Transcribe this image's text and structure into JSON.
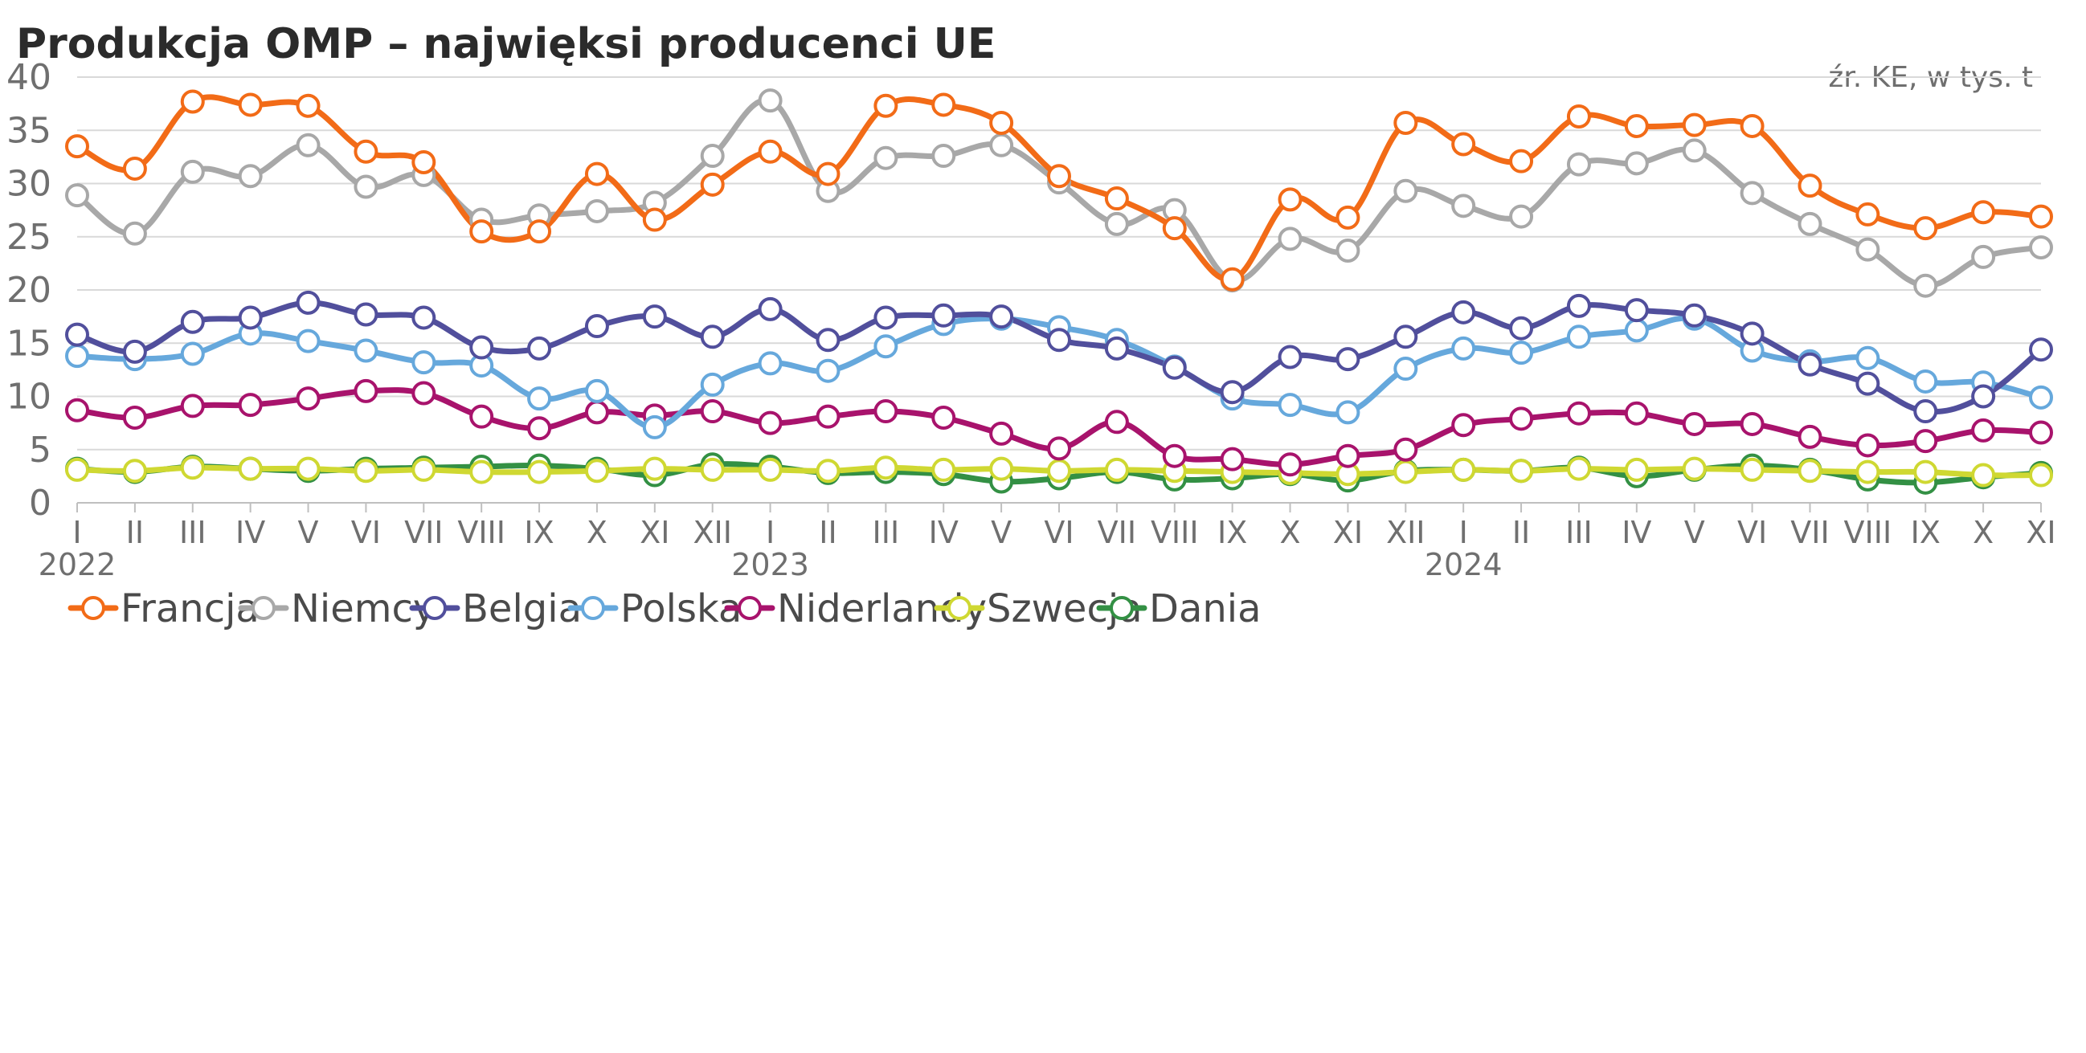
{
  "chart_data": {
    "type": "line",
    "title": "Produkcja OMP – najwięksi producenci UE",
    "source_note": "źr. KE, w tys. t",
    "ylim": [
      0,
      40
    ],
    "yticks": [
      "0",
      "5",
      "10",
      "15",
      "20",
      "25",
      "30",
      "35",
      "40"
    ],
    "grid": true,
    "legend_position": "bottom",
    "categories": [
      "I",
      "II",
      "III",
      "IV",
      "V",
      "VI",
      "VII",
      "VIII",
      "IX",
      "X",
      "XI",
      "XII",
      "I",
      "II",
      "III",
      "IV",
      "V",
      "VI",
      "VII",
      "VIII",
      "IX",
      "X",
      "XI",
      "XII",
      "I",
      "II",
      "III",
      "IV",
      "V",
      "VI",
      "VII",
      "VIII",
      "IX",
      "X",
      "XI"
    ],
    "years": [
      {
        "label": "2022",
        "index": 0
      },
      {
        "label": "2023",
        "index": 12
      },
      {
        "label": "2024",
        "index": 24
      }
    ],
    "series": [
      {
        "name": "Francja",
        "color": "#f26b17",
        "values": [
          33.5,
          31.4,
          37.7,
          37.4,
          37.3,
          33.0,
          32.0,
          25.5,
          25.5,
          30.9,
          26.6,
          29.9,
          33.0,
          30.9,
          37.3,
          37.4,
          35.7,
          30.7,
          28.6,
          25.8,
          21.0,
          28.5,
          26.8,
          35.7,
          33.7,
          32.1,
          36.3,
          35.4,
          35.5,
          35.4,
          29.8,
          27.1,
          25.8,
          27.3,
          26.9
        ]
      },
      {
        "name": "Niemcy",
        "color": "#a8a8a8",
        "values": [
          28.9,
          25.3,
          31.1,
          30.7,
          33.6,
          29.7,
          30.8,
          26.6,
          27.0,
          27.4,
          28.2,
          32.6,
          37.8,
          29.3,
          32.4,
          32.6,
          33.6,
          30.1,
          26.2,
          27.5,
          20.9,
          24.8,
          23.7,
          29.3,
          27.9,
          26.9,
          31.8,
          31.9,
          33.1,
          29.1,
          26.2,
          23.8,
          20.4,
          23.1,
          24.0
        ]
      },
      {
        "name": "Belgia",
        "color": "#514f9c",
        "values": [
          15.8,
          14.2,
          17.0,
          17.4,
          18.8,
          17.7,
          17.4,
          14.6,
          14.5,
          16.6,
          17.5,
          15.6,
          18.2,
          15.3,
          17.4,
          17.6,
          17.5,
          15.3,
          14.5,
          12.7,
          10.4,
          13.7,
          13.5,
          15.6,
          17.9,
          16.4,
          18.5,
          18.1,
          17.6,
          15.9,
          13.0,
          11.2,
          8.6,
          10.0,
          14.4
        ]
      },
      {
        "name": "Polska",
        "color": "#66a8dc",
        "values": [
          13.8,
          13.5,
          14.0,
          15.9,
          15.2,
          14.3,
          13.2,
          12.9,
          9.8,
          10.5,
          7.1,
          11.1,
          13.1,
          12.4,
          14.7,
          16.8,
          17.3,
          16.5,
          15.3,
          12.8,
          9.8,
          9.2,
          8.5,
          12.6,
          14.5,
          14.1,
          15.6,
          16.2,
          17.3,
          14.3,
          13.3,
          13.6,
          11.4,
          11.3,
          9.9
        ]
      },
      {
        "name": "Niderlandy",
        "color": "#a8136c",
        "values": [
          8.7,
          8.0,
          9.1,
          9.2,
          9.8,
          10.5,
          10.3,
          8.1,
          7.0,
          8.5,
          8.2,
          8.6,
          7.5,
          8.1,
          8.6,
          8.0,
          6.5,
          5.1,
          7.6,
          4.4,
          4.1,
          3.6,
          4.4,
          5.0,
          7.3,
          7.9,
          8.4,
          8.4,
          7.4,
          7.4,
          6.2,
          5.4,
          5.8,
          6.8,
          6.6
        ]
      },
      {
        "name": "Szwecja",
        "color": "#cfd832",
        "values": [
          3.1,
          3.0,
          3.3,
          3.2,
          3.2,
          3.0,
          3.1,
          2.9,
          2.9,
          3.0,
          3.2,
          3.1,
          3.1,
          3.0,
          3.3,
          3.1,
          3.2,
          3.0,
          3.1,
          3.0,
          2.9,
          2.8,
          2.7,
          2.9,
          3.1,
          3.0,
          3.2,
          3.1,
          3.2,
          3.1,
          3.0,
          2.9,
          2.9,
          2.6,
          2.6
        ]
      },
      {
        "name": "Dania",
        "color": "#339044",
        "values": [
          3.2,
          2.9,
          3.4,
          3.2,
          3.0,
          3.2,
          3.3,
          3.4,
          3.5,
          3.2,
          2.6,
          3.6,
          3.4,
          2.8,
          2.9,
          2.7,
          2.0,
          2.3,
          2.9,
          2.2,
          2.3,
          2.7,
          2.1,
          3.0,
          3.1,
          3.0,
          3.3,
          2.5,
          3.1,
          3.5,
          3.1,
          2.2,
          1.9,
          2.4,
          2.8
        ]
      }
    ]
  }
}
